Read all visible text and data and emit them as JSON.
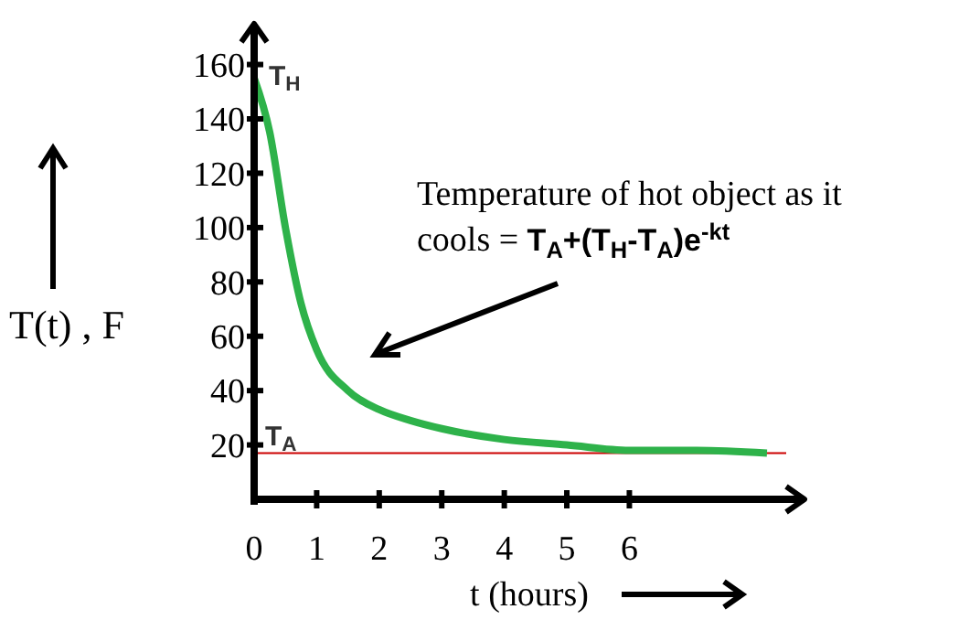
{
  "chart_data": {
    "type": "line",
    "xlabel": "t (hours)",
    "ylabel": "T(t) , F",
    "x": [
      0,
      0.25,
      0.5,
      0.75,
      1,
      1.5,
      2,
      2.5,
      3,
      4,
      5,
      6,
      7,
      8.2
    ],
    "series": [
      {
        "color": "#2eb24a",
        "values": [
          155,
          135,
          100,
          72,
          55,
          40,
          33,
          29,
          26,
          22,
          20,
          18,
          18,
          17
        ]
      }
    ],
    "xlim": [
      0,
      8.8
    ],
    "xticks": [
      0,
      1,
      2,
      3,
      4,
      5,
      6
    ],
    "ylim": [
      0,
      175
    ],
    "yticks": [
      20,
      40,
      60,
      80,
      100,
      120,
      140,
      160
    ],
    "ref_lines": [
      {
        "axis": "y",
        "value": 17,
        "label": "T$_{A}$",
        "color": "#cc0000"
      }
    ],
    "annotations": [
      {
        "text": "T$_{H}$",
        "x": 0,
        "y": 155
      },
      "Temperature of hot object as it",
      "cools = T$_{A}$+(T$_{H}$-T$_{A}$)e$^{-kt}$"
    ],
    "grid": false,
    "marker": "none",
    "line_style": "solid"
  }
}
